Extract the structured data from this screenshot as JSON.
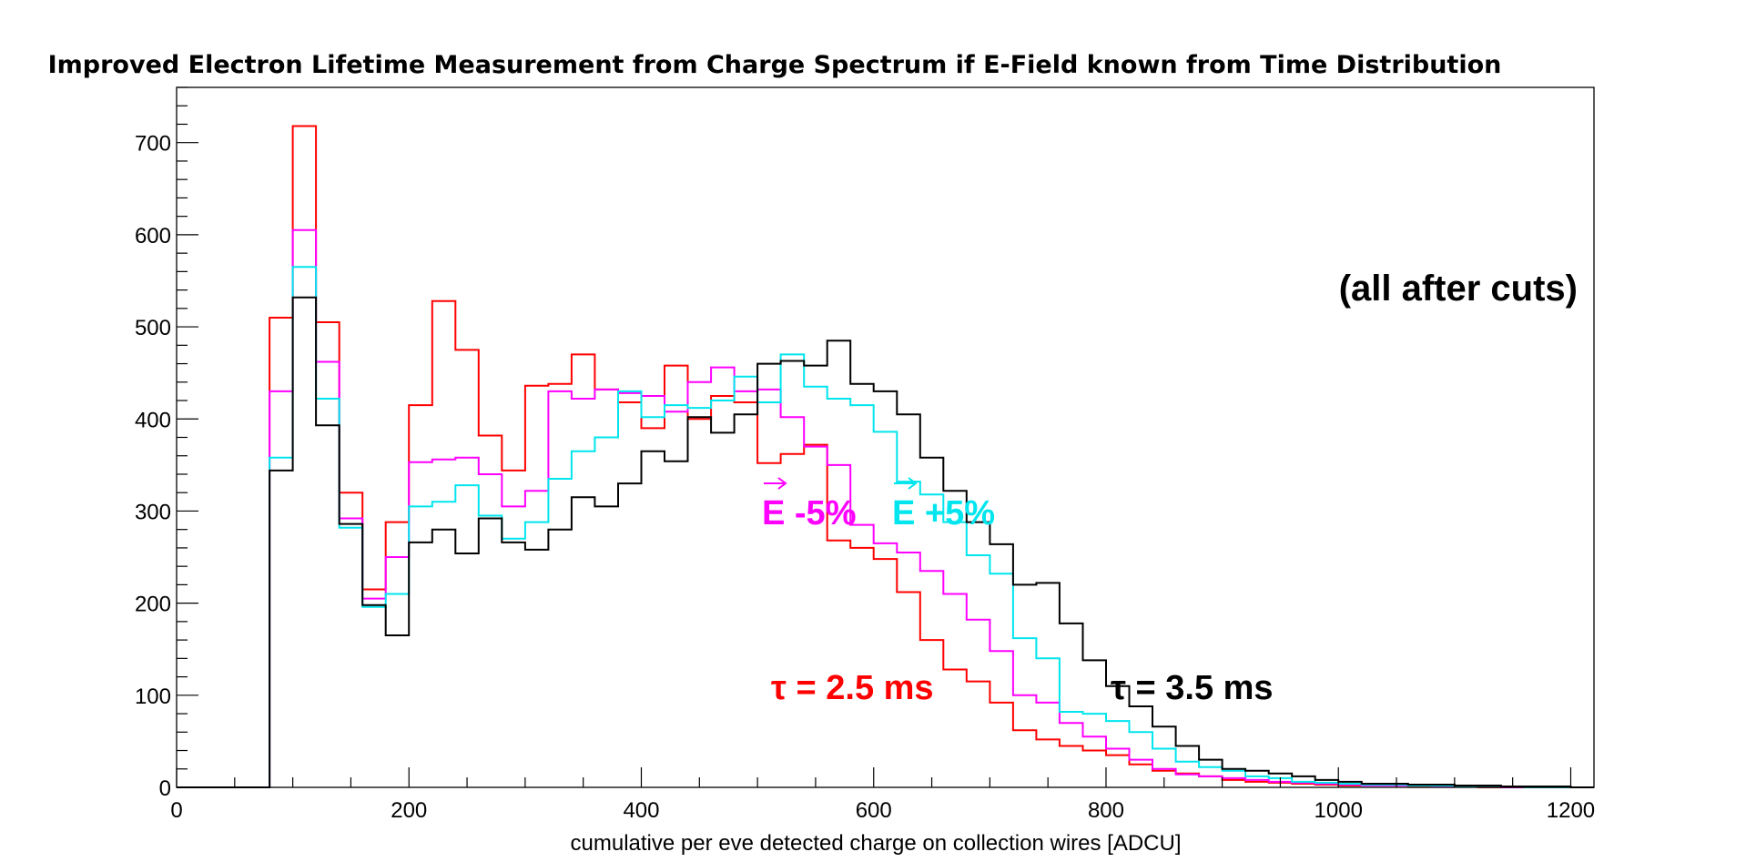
{
  "chart_data": {
    "type": "histogram",
    "title": "Improved Electron Lifetime Measurement from Charge Spectrum if E-Field known from Time Distribution",
    "xlabel": "cumulative per eve detected charge on collection wires  [ADCU]",
    "ylabel": "",
    "xlim": [
      0,
      1220
    ],
    "ylim": [
      0,
      760
    ],
    "x_ticks": [
      0,
      200,
      400,
      600,
      800,
      1000,
      1200
    ],
    "x_tick_labels": [
      "0",
      "200",
      "400",
      "600",
      "800",
      "1000",
      "1200"
    ],
    "y_ticks": [
      0,
      100,
      200,
      300,
      400,
      500,
      600,
      700
    ],
    "y_tick_labels": [
      "0",
      "100",
      "200",
      "300",
      "400",
      "500",
      "600",
      "700"
    ],
    "grid": false,
    "bin_edges": [
      0,
      20,
      40,
      60,
      80,
      100,
      120,
      140,
      160,
      180,
      200,
      220,
      240,
      260,
      280,
      300,
      320,
      340,
      360,
      380,
      400,
      420,
      440,
      460,
      480,
      500,
      520,
      540,
      560,
      580,
      600,
      620,
      640,
      660,
      680,
      700,
      720,
      740,
      760,
      780,
      800,
      820,
      840,
      860,
      880,
      900,
      920,
      940,
      960,
      980,
      1000,
      1020,
      1040,
      1060,
      1080,
      1100,
      1120,
      1140,
      1160,
      1180,
      1200,
      1220
    ],
    "series": [
      {
        "color": "#ff0000",
        "values": [
          0,
          0,
          0,
          0,
          510,
          718,
          505,
          320,
          215,
          288,
          415,
          528,
          475,
          382,
          344,
          436,
          438,
          470,
          432,
          418,
          390,
          458,
          400,
          425,
          418,
          352,
          362,
          372,
          268,
          260,
          248,
          212,
          160,
          128,
          115,
          92,
          62,
          52,
          45,
          40,
          35,
          25,
          18,
          15,
          12,
          8,
          6,
          5,
          4,
          3,
          2,
          2,
          2,
          1,
          1,
          1,
          0,
          0,
          0,
          0,
          0
        ]
      },
      {
        "color": "#ff00ff",
        "values": [
          0,
          0,
          0,
          0,
          430,
          605,
          462,
          292,
          205,
          250,
          353,
          356,
          358,
          340,
          305,
          322,
          430,
          422,
          432,
          428,
          425,
          408,
          440,
          456,
          430,
          432,
          402,
          370,
          350,
          285,
          265,
          255,
          235,
          210,
          182,
          148,
          100,
          92,
          70,
          55,
          42,
          30,
          20,
          14,
          12,
          10,
          8,
          6,
          5,
          4,
          3,
          2,
          2,
          2,
          1,
          1,
          1,
          0,
          0,
          0,
          0
        ]
      },
      {
        "color": "#00e5ee",
        "values": [
          0,
          0,
          0,
          0,
          358,
          565,
          422,
          282,
          196,
          210,
          305,
          310,
          328,
          295,
          270,
          288,
          335,
          365,
          380,
          430,
          402,
          415,
          412,
          420,
          446,
          418,
          470,
          435,
          422,
          415,
          386,
          332,
          318,
          288,
          252,
          232,
          162,
          140,
          82,
          80,
          72,
          60,
          42,
          28,
          22,
          18,
          12,
          10,
          6,
          5,
          4,
          3,
          3,
          2,
          2,
          1,
          1,
          1,
          0,
          0,
          0
        ]
      },
      {
        "color": "#000000",
        "values": [
          0,
          0,
          0,
          0,
          344,
          532,
          393,
          286,
          198,
          165,
          266,
          280,
          254,
          292,
          266,
          258,
          280,
          315,
          305,
          330,
          365,
          354,
          402,
          385,
          405,
          460,
          463,
          458,
          485,
          438,
          430,
          405,
          358,
          322,
          288,
          264,
          220,
          222,
          178,
          138,
          110,
          88,
          66,
          45,
          30,
          20,
          18,
          15,
          12,
          8,
          6,
          4,
          4,
          3,
          3,
          2,
          2,
          1,
          1,
          1,
          0
        ]
      }
    ],
    "annotations": {
      "note": "(all after cuts)",
      "tau_25": "τ = 2.5 ms",
      "tau_35": "τ = 3.5 ms",
      "e_minus": "E -5%",
      "e_plus": "E +5%"
    }
  }
}
